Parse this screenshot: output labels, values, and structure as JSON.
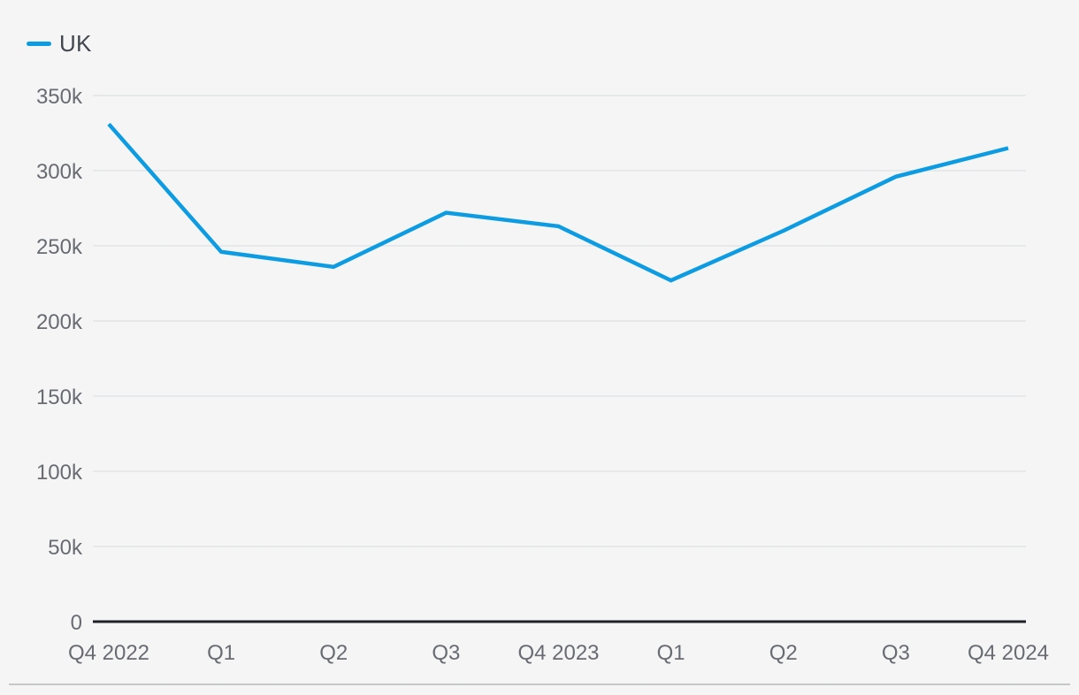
{
  "legend": {
    "items": [
      {
        "label": "UK",
        "color": "#0d9ce2",
        "swatch": "line"
      }
    ]
  },
  "colors": {
    "background": "#f5f5f6",
    "grid": "#e2e3e5",
    "axis_line": "#1e2127",
    "tick_text": "#686c72",
    "legend_text": "#42474f",
    "divider": "#c6c7c9",
    "series_blue": "#0d9ce2"
  },
  "chart_data": {
    "type": "line",
    "title": "",
    "xlabel": "",
    "ylabel": "",
    "unit": "k",
    "categories": [
      "Q4 2022",
      "Q1",
      "Q2",
      "Q3",
      "Q4 2023",
      "Q1",
      "Q2",
      "Q3",
      "Q4 2024"
    ],
    "series": [
      {
        "name": "UK",
        "color": "#0d9ce2",
        "values_thousands": [
          331,
          246,
          236,
          272,
          263,
          227,
          260,
          296,
          315
        ]
      }
    ],
    "y_ticks": [
      {
        "value": 0,
        "label": "0"
      },
      {
        "value": 50,
        "label": "50k"
      },
      {
        "value": 100,
        "label": "100k"
      },
      {
        "value": 150,
        "label": "150k"
      },
      {
        "value": 200,
        "label": "200k"
      },
      {
        "value": 250,
        "label": "250k"
      },
      {
        "value": 300,
        "label": "300k"
      },
      {
        "value": 350,
        "label": "350k"
      }
    ],
    "ylim": [
      0,
      350
    ],
    "grid": "horizontal",
    "legend_position": "top-left"
  }
}
